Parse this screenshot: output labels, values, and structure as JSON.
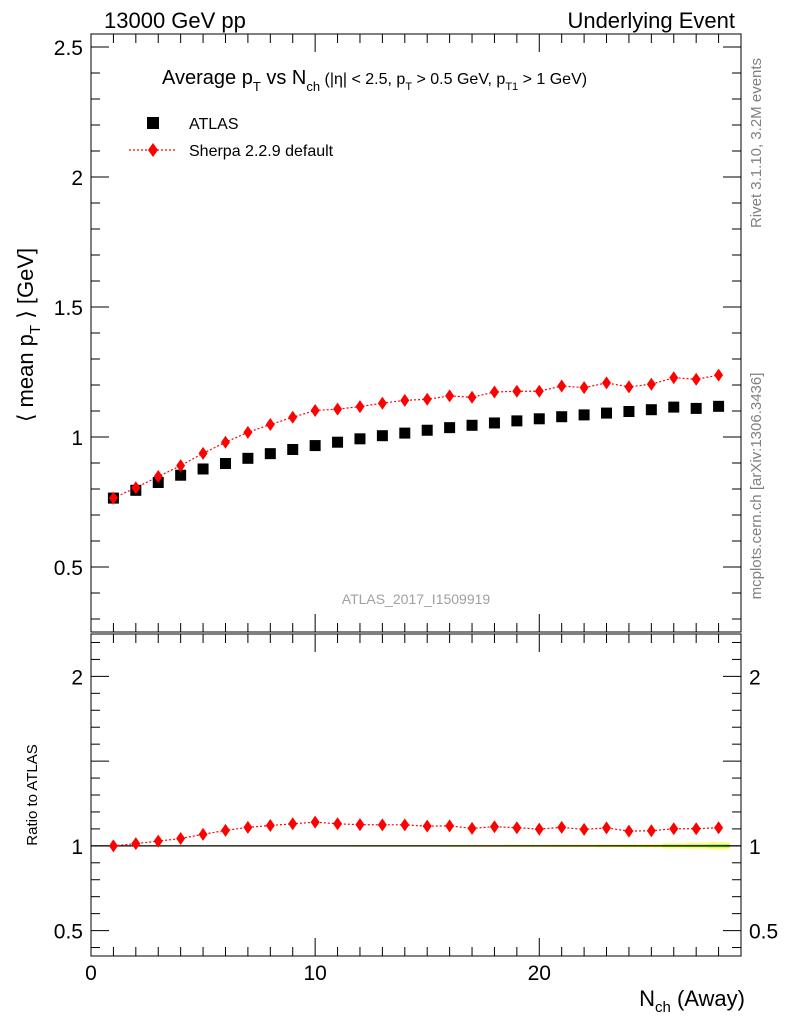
{
  "header": {
    "energy_label": "13000 GeV pp",
    "event_label": "Underlying Event"
  },
  "side_labels": {
    "rivet": "Rivet 3.1.10,  3.2M events",
    "mcplots": "mcplots.cern.ch [arXiv:1306.3436]"
  },
  "chart_data": {
    "type": "scatter",
    "title": {
      "prefix": "Average p",
      "sub_T": "T",
      "mid": " vs N",
      "sub_ch": "ch",
      "cuts_open": " (|η| < 2.5, p",
      "cuts_mid": " > 0.5 GeV, p",
      "sub_T1": "T1",
      "cuts_close": " > 1 GeV)"
    },
    "ylabel": {
      "open": "⟨ mean p",
      "sub": "T",
      "close": " ⟩ [GeV]"
    },
    "xlabel": {
      "main": "N",
      "sub": "ch",
      "rest": " (Away)"
    },
    "ratio_ylabel": "Ratio to ATLAS",
    "watermark": "ATLAS_2017_I1509919",
    "xlim": [
      0,
      29
    ],
    "ylim": [
      0.25,
      2.55
    ],
    "ratio_ylim": [
      0.35,
      2.25
    ],
    "x_ticks": [
      "0",
      "10",
      "20"
    ],
    "y_ticks": [
      "0.5",
      "1",
      "1.5",
      "2",
      "2.5"
    ],
    "ratio_ticks": [
      "0.5",
      "1",
      "2"
    ],
    "legend": [
      {
        "name": "ATLAS",
        "marker": "square",
        "color": "#000000"
      },
      {
        "name": "Sherpa 2.2.9 default",
        "marker": "diamond",
        "color": "#ff0000"
      }
    ],
    "x": [
      1,
      2,
      3,
      4,
      5,
      6,
      7,
      8,
      9,
      10,
      11,
      12,
      13,
      14,
      15,
      16,
      17,
      18,
      19,
      20,
      21,
      22,
      23,
      24,
      25,
      26,
      27,
      28
    ],
    "series": [
      {
        "name": "ATLAS",
        "color": "#000000",
        "values": [
          0.765,
          0.795,
          0.825,
          0.853,
          0.877,
          0.898,
          0.918,
          0.936,
          0.952,
          0.967,
          0.98,
          0.993,
          1.005,
          1.015,
          1.026,
          1.036,
          1.045,
          1.054,
          1.062,
          1.07,
          1.078,
          1.085,
          1.092,
          1.098,
          1.105,
          1.115,
          1.11,
          1.118
        ]
      },
      {
        "name": "Sherpa 2.2.9 default",
        "color": "#ff0000",
        "values": [
          0.765,
          0.805,
          0.848,
          0.89,
          0.937,
          0.98,
          1.018,
          1.048,
          1.076,
          1.102,
          1.107,
          1.117,
          1.13,
          1.141,
          1.145,
          1.158,
          1.153,
          1.173,
          1.176,
          1.176,
          1.196,
          1.19,
          1.208,
          1.193,
          1.203,
          1.228,
          1.222,
          1.238
        ]
      }
    ],
    "ratio": [
      1.0,
      1.013,
      1.028,
      1.043,
      1.068,
      1.091,
      1.109,
      1.12,
      1.13,
      1.14,
      1.13,
      1.125,
      1.124,
      1.124,
      1.116,
      1.118,
      1.103,
      1.113,
      1.107,
      1.099,
      1.109,
      1.097,
      1.106,
      1.087,
      1.089,
      1.101,
      1.101,
      1.107
    ],
    "ratio_band_half": [
      0.004,
      0.004,
      0.004,
      0.004,
      0.004,
      0.004,
      0.004,
      0.004,
      0.004,
      0.004,
      0.004,
      0.005,
      0.005,
      0.005,
      0.005,
      0.006,
      0.006,
      0.006,
      0.007,
      0.007,
      0.008,
      0.008,
      0.009,
      0.01,
      0.011,
      0.016,
      0.018,
      0.022
    ]
  }
}
